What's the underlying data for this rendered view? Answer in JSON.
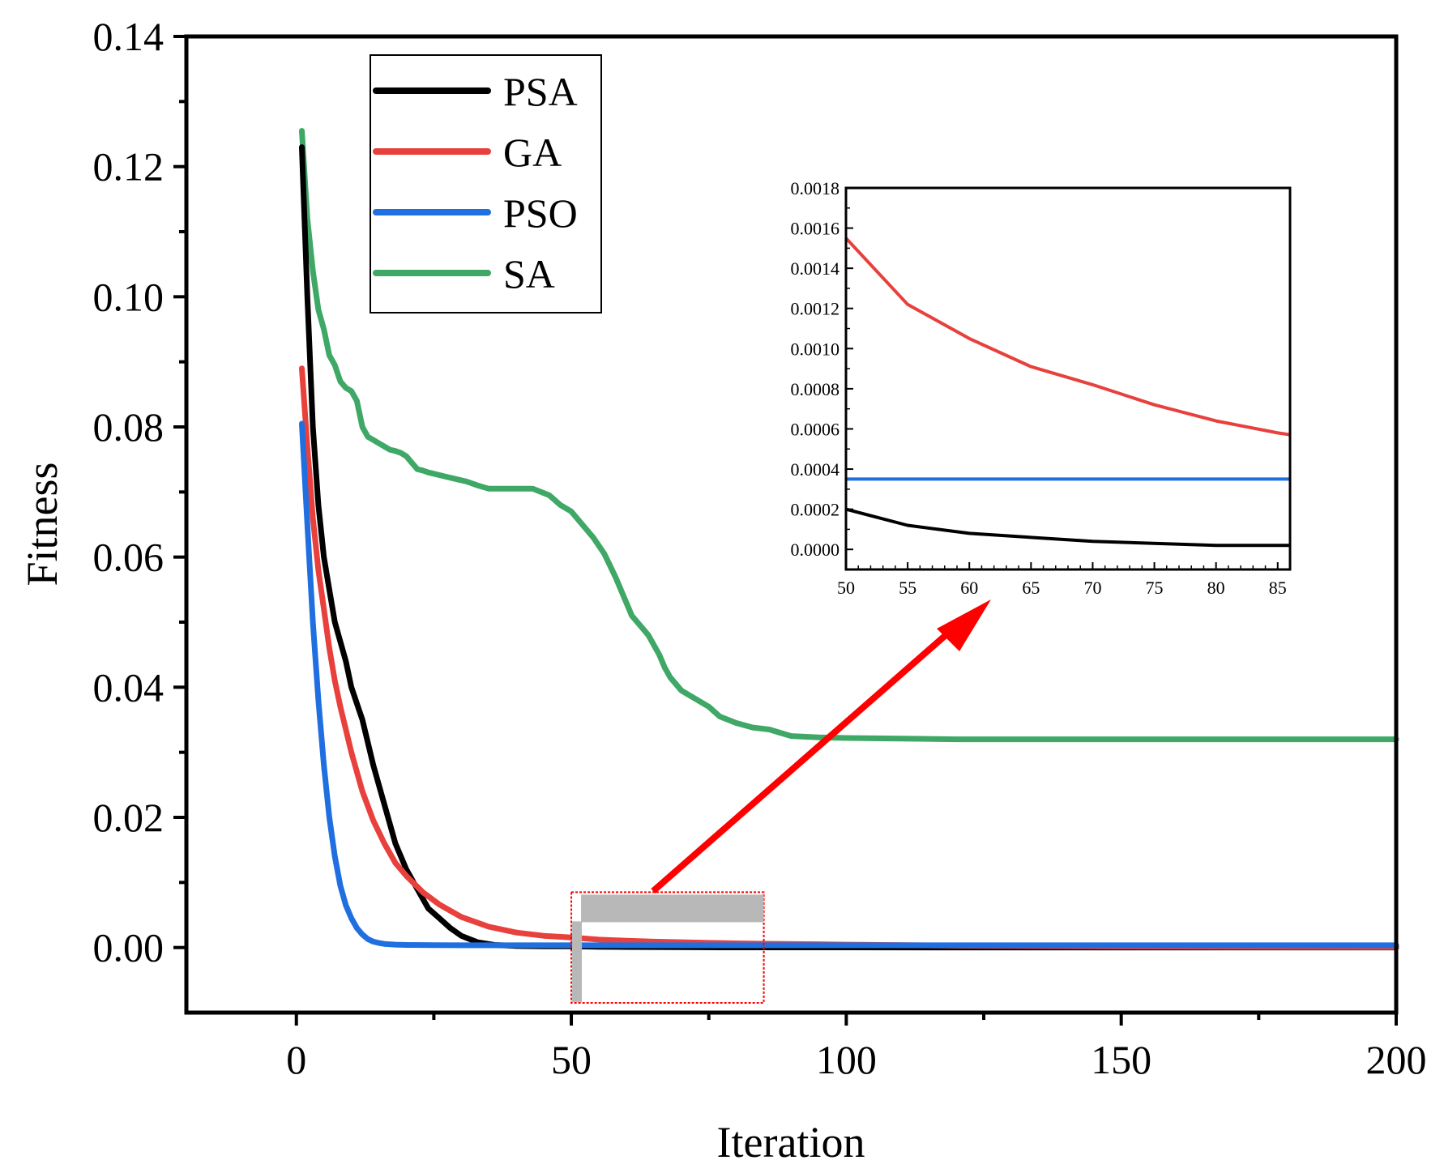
{
  "chart_data": {
    "type": "line",
    "title": "",
    "xlabel": "Iteration",
    "ylabel": "Fitness",
    "xlim": [
      -20,
      200
    ],
    "ylim": [
      -0.01,
      0.14
    ],
    "xticks": [
      0,
      50,
      100,
      150,
      200
    ],
    "xtick_labels": [
      "0",
      "50",
      "100",
      "150",
      "200"
    ],
    "yticks": [
      0.0,
      0.02,
      0.04,
      0.06,
      0.08,
      0.1,
      0.12,
      0.14
    ],
    "ytick_labels": [
      "0.00",
      "0.02",
      "0.04",
      "0.06",
      "0.08",
      "0.10",
      "0.12",
      "0.14"
    ],
    "legend_position": "top-left",
    "series": [
      {
        "name": "PSA",
        "color": "#000000",
        "x": [
          1,
          2,
          3,
          4,
          5,
          6,
          7,
          8,
          9,
          10,
          12,
          14,
          16,
          18,
          20,
          22,
          24,
          26,
          28,
          30,
          33,
          36,
          40,
          45,
          50,
          55,
          60,
          70,
          80,
          90,
          100,
          120,
          150,
          200
        ],
        "y": [
          0.123,
          0.1,
          0.08,
          0.068,
          0.06,
          0.055,
          0.05,
          0.047,
          0.044,
          0.04,
          0.035,
          0.028,
          0.022,
          0.016,
          0.012,
          0.009,
          0.006,
          0.0045,
          0.003,
          0.0018,
          0.0008,
          0.0004,
          0.00025,
          0.0002,
          0.0002,
          0.00012,
          8e-05,
          4e-05,
          2e-05,
          2e-05,
          2e-05,
          1e-05,
          1e-05,
          1e-05
        ]
      },
      {
        "name": "GA",
        "color": "#e8403c",
        "x": [
          1,
          2,
          3,
          4,
          5,
          6,
          7,
          8,
          10,
          12,
          14,
          16,
          18,
          20,
          23,
          26,
          30,
          35,
          40,
          45,
          50,
          55,
          60,
          65,
          70,
          75,
          80,
          85,
          100,
          120,
          150,
          200
        ],
        "y": [
          0.089,
          0.077,
          0.066,
          0.058,
          0.052,
          0.046,
          0.041,
          0.037,
          0.03,
          0.024,
          0.0195,
          0.016,
          0.013,
          0.011,
          0.0085,
          0.0066,
          0.0047,
          0.0032,
          0.0023,
          0.0018,
          0.00155,
          0.00122,
          0.00105,
          0.00091,
          0.00082,
          0.00072,
          0.00064,
          0.00058,
          0.00045,
          0.00028,
          0.00015,
          5e-05
        ]
      },
      {
        "name": "PSO",
        "color": "#1f6fe0",
        "x": [
          1,
          2,
          3,
          4,
          5,
          6,
          7,
          8,
          9,
          10,
          11,
          12,
          13,
          14,
          15,
          16,
          18,
          20,
          25,
          30,
          40,
          50,
          85,
          100,
          150,
          200
        ],
        "y": [
          0.0805,
          0.065,
          0.05,
          0.038,
          0.028,
          0.02,
          0.014,
          0.0095,
          0.0065,
          0.0045,
          0.003,
          0.002,
          0.0013,
          0.0009,
          0.0007,
          0.00055,
          0.00045,
          0.0004,
          0.00036,
          0.00035,
          0.00035,
          0.00035,
          0.00035,
          0.00035,
          0.00035,
          0.00035
        ]
      },
      {
        "name": "SA",
        "color": "#3fa866",
        "x": [
          1,
          2,
          3,
          4,
          5,
          6,
          7,
          8,
          9,
          10,
          11,
          12,
          13,
          14,
          15,
          16,
          17,
          18,
          19,
          20,
          21,
          22,
          23,
          24,
          25,
          27,
          29,
          31,
          33,
          35,
          37,
          40,
          43,
          46,
          48,
          50,
          52,
          54,
          56,
          58,
          59,
          60,
          61,
          62,
          63,
          64,
          66,
          67,
          68,
          69,
          70,
          72,
          75,
          77,
          80,
          83,
          86,
          88,
          90,
          95,
          100,
          110,
          120,
          150,
          200
        ],
        "y": [
          0.1255,
          0.112,
          0.104,
          0.098,
          0.095,
          0.091,
          0.0895,
          0.087,
          0.086,
          0.0855,
          0.084,
          0.08,
          0.0785,
          0.078,
          0.0775,
          0.077,
          0.0765,
          0.0763,
          0.076,
          0.0755,
          0.0745,
          0.0735,
          0.0733,
          0.073,
          0.0728,
          0.0724,
          0.072,
          0.0716,
          0.071,
          0.0705,
          0.0705,
          0.0705,
          0.0705,
          0.0695,
          0.068,
          0.067,
          0.065,
          0.063,
          0.0605,
          0.057,
          0.055,
          0.053,
          0.051,
          0.05,
          0.049,
          0.048,
          0.045,
          0.043,
          0.0415,
          0.0405,
          0.0395,
          0.0385,
          0.037,
          0.0355,
          0.0345,
          0.0338,
          0.0335,
          0.033,
          0.0325,
          0.0323,
          0.0322,
          0.0321,
          0.032,
          0.032,
          0.032
        ]
      }
    ],
    "zoom_region": {
      "x_from": 50,
      "x_to": 85,
      "y_from": -0.0085,
      "y_to": 0.0085
    },
    "inset": {
      "xlim": [
        50,
        86
      ],
      "ylim": [
        -0.0001,
        0.0018
      ],
      "xticks": [
        50,
        55,
        60,
        65,
        70,
        75,
        80,
        85
      ],
      "xtick_labels": [
        "50",
        "55",
        "60",
        "65",
        "70",
        "75",
        "80",
        "85"
      ],
      "yticks": [
        0.0,
        0.0002,
        0.0004,
        0.0006,
        0.0008,
        0.001,
        0.0012,
        0.0014,
        0.0016,
        0.0018
      ],
      "ytick_labels": [
        "0.0000",
        "0.0002",
        "0.0004",
        "0.0006",
        "0.0008",
        "0.0010",
        "0.0012",
        "0.0014",
        "0.0016",
        "0.0018"
      ]
    },
    "arrow_color": "#ff0000"
  }
}
